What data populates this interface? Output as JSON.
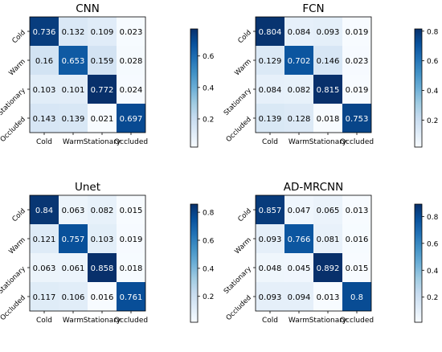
{
  "chart_data": [
    {
      "type": "heatmap",
      "title": "CNN",
      "row_labels": [
        "Cold",
        "Warm",
        "Stationary",
        "Occluded"
      ],
      "col_labels": [
        "Cold",
        "Warm",
        "Stationary",
        "Occluded"
      ],
      "values": [
        [
          "0.736",
          "0.132",
          "0.109",
          "0.023"
        ],
        [
          "0.16",
          "0.653",
          "0.159",
          "0.028"
        ],
        [
          "0.103",
          "0.101",
          "0.772",
          "0.024"
        ],
        [
          "0.143",
          "0.139",
          "0.021",
          "0.697"
        ]
      ],
      "colorbar": {
        "range": [
          0.021,
          0.772
        ],
        "ticks": [
          "0.2",
          "0.4",
          "0.6"
        ],
        "tick_values": [
          0.2,
          0.4,
          0.6
        ]
      },
      "colormap": "Blues"
    },
    {
      "type": "heatmap",
      "title": "FCN",
      "row_labels": [
        "Cold",
        "Warm",
        "Stationary",
        "Occluded"
      ],
      "col_labels": [
        "Cold",
        "Warm",
        "Stationary",
        "Occluded"
      ],
      "values": [
        [
          "0.804",
          "0.084",
          "0.093",
          "0.019"
        ],
        [
          "0.129",
          "0.702",
          "0.146",
          "0.023"
        ],
        [
          "0.084",
          "0.082",
          "0.815",
          "0.019"
        ],
        [
          "0.139",
          "0.128",
          "0.018",
          "0.753"
        ]
      ],
      "colorbar": {
        "range": [
          0.018,
          0.815
        ],
        "ticks": [
          "0.2",
          "0.4",
          "0.6",
          "0.8"
        ],
        "tick_values": [
          0.2,
          0.4,
          0.6,
          0.8
        ]
      },
      "colormap": "Blues"
    },
    {
      "type": "heatmap",
      "title": "Unet",
      "row_labels": [
        "Cold",
        "Warm",
        "Stationary",
        "Occluded"
      ],
      "col_labels": [
        "Cold",
        "Warm",
        "Stationary",
        "Occluded"
      ],
      "values": [
        [
          "0.84",
          "0.063",
          "0.082",
          "0.015"
        ],
        [
          "0.121",
          "0.757",
          "0.103",
          "0.019"
        ],
        [
          "0.063",
          "0.061",
          "0.858",
          "0.018"
        ],
        [
          "0.117",
          "0.106",
          "0.016",
          "0.761"
        ]
      ],
      "colorbar": {
        "range": [
          0.015,
          0.858
        ],
        "ticks": [
          "0.2",
          "0.4",
          "0.6",
          "0.8"
        ],
        "tick_values": [
          0.2,
          0.4,
          0.6,
          0.8
        ]
      },
      "colormap": "Blues"
    },
    {
      "type": "heatmap",
      "title": "AD-MRCNN",
      "row_labels": [
        "Cold",
        "Warm",
        "Stationary",
        "Occluded"
      ],
      "col_labels": [
        "Cold",
        "Warm",
        "Stationary",
        "Occluded"
      ],
      "values": [
        [
          "0.857",
          "0.047",
          "0.065",
          "0.013"
        ],
        [
          "0.093",
          "0.766",
          "0.081",
          "0.016"
        ],
        [
          "0.048",
          "0.045",
          "0.892",
          "0.015"
        ],
        [
          "0.093",
          "0.094",
          "0.013",
          "0.8"
        ]
      ],
      "colorbar": {
        "range": [
          0.013,
          0.892
        ],
        "ticks": [
          "0.2",
          "0.4",
          "0.6",
          "0.8"
        ],
        "tick_values": [
          0.2,
          0.4,
          0.6,
          0.8
        ]
      },
      "colormap": "Blues"
    }
  ]
}
